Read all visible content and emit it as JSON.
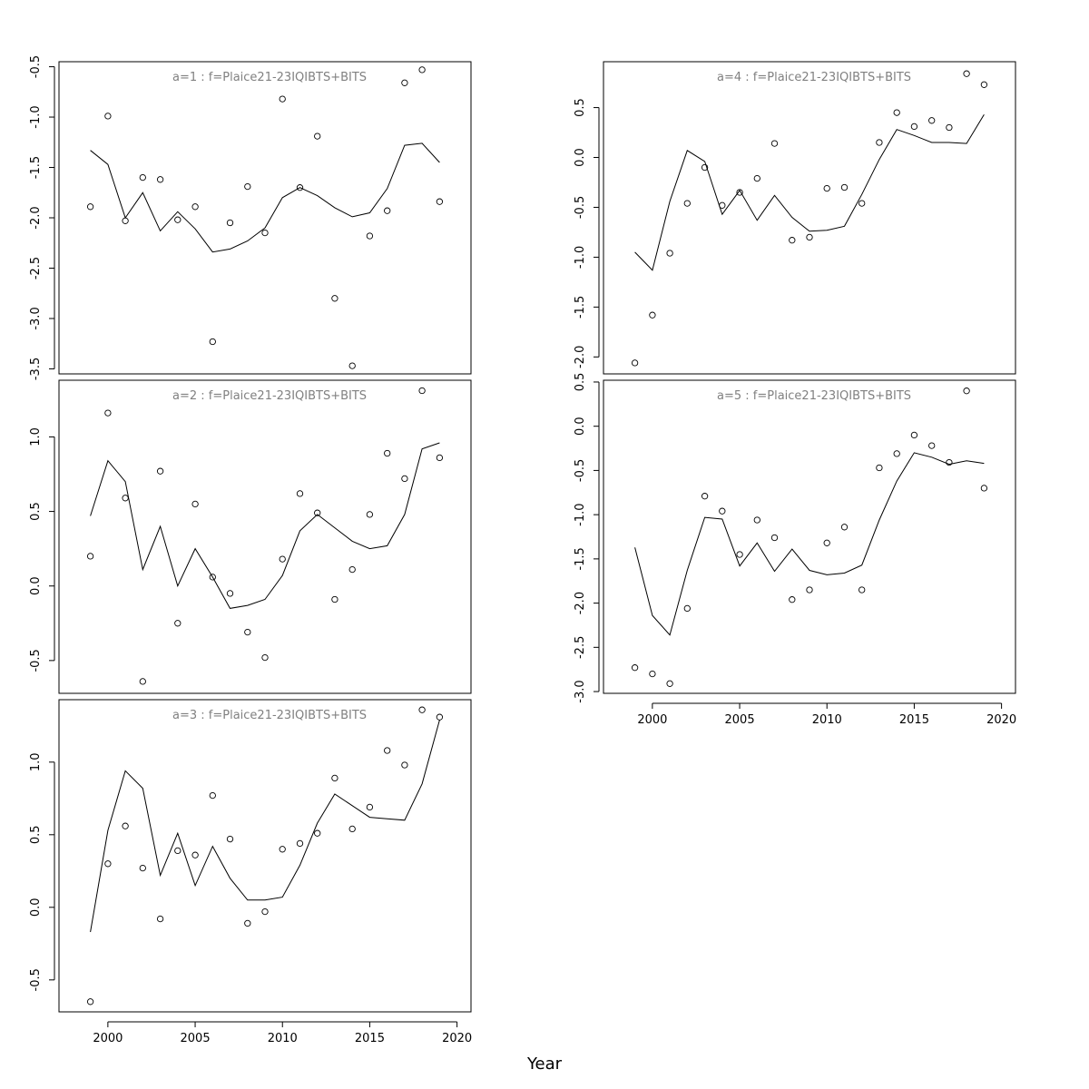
{
  "xlabel": "Year",
  "colors": {
    "line": "#000000",
    "points": "#000000",
    "title": "#808080",
    "frame": "#000000"
  },
  "chart_data": [
    {
      "type": "line",
      "title": "a=1 : f=Plaice21-23IQIBTS+BITS",
      "x": [
        1999,
        2000,
        2001,
        2002,
        2003,
        2004,
        2005,
        2006,
        2007,
        2008,
        2009,
        2010,
        2011,
        2012,
        2013,
        2014,
        2015,
        2016,
        2017,
        2018,
        2019
      ],
      "series": [
        {
          "kind": "line",
          "values": [
            -1.33,
            -1.47,
            -2.0,
            -1.75,
            -2.13,
            -1.94,
            -2.11,
            -2.34,
            -2.31,
            -2.23,
            -2.1,
            -1.8,
            -1.7,
            -1.78,
            -1.9,
            -1.99,
            -1.95,
            -1.71,
            -1.28,
            -1.26,
            -1.45
          ]
        },
        {
          "kind": "points",
          "values": [
            -1.89,
            -0.99,
            -2.03,
            -1.6,
            -1.62,
            -2.02,
            -1.89,
            -3.23,
            -2.05,
            -1.69,
            -2.15,
            -0.82,
            -1.7,
            -1.19,
            -2.8,
            -3.47,
            -2.18,
            -1.93,
            -0.66,
            -0.53,
            -1.84
          ]
        }
      ],
      "yticks": [
        -0.5,
        -1.0,
        -1.5,
        -2.0,
        -2.5,
        -3.0,
        -3.5
      ],
      "ylim": [
        -3.55,
        -0.45
      ],
      "xlim": [
        1997.2,
        2020.8
      ],
      "xticks": [],
      "grid": false
    },
    {
      "type": "line",
      "title": "a=2 : f=Plaice21-23IQIBTS+BITS",
      "x": [
        1999,
        2000,
        2001,
        2002,
        2003,
        2004,
        2005,
        2006,
        2007,
        2008,
        2009,
        2010,
        2011,
        2012,
        2013,
        2014,
        2015,
        2016,
        2017,
        2018,
        2019
      ],
      "series": [
        {
          "kind": "line",
          "values": [
            0.47,
            0.84,
            0.7,
            0.11,
            0.4,
            0.0,
            0.25,
            0.06,
            -0.15,
            -0.13,
            -0.09,
            0.07,
            0.37,
            0.48,
            0.39,
            0.3,
            0.25,
            0.27,
            0.48,
            0.92,
            0.96
          ]
        },
        {
          "kind": "points",
          "values": [
            0.2,
            1.16,
            0.59,
            -0.64,
            0.77,
            -0.25,
            0.55,
            0.06,
            -0.05,
            -0.31,
            -0.48,
            0.18,
            0.62,
            0.49,
            -0.09,
            0.11,
            0.48,
            0.89,
            0.72,
            1.31,
            0.86
          ]
        }
      ],
      "yticks": [
        1.0,
        0.5,
        0.0,
        -0.5
      ],
      "ylim": [
        -0.72,
        1.38
      ],
      "xlim": [
        1997.2,
        2020.8
      ],
      "xticks": [],
      "grid": false
    },
    {
      "type": "line",
      "title": "a=3 : f=Plaice21-23IQIBTS+BITS",
      "x": [
        1999,
        2000,
        2001,
        2002,
        2003,
        2004,
        2005,
        2006,
        2007,
        2008,
        2009,
        2010,
        2011,
        2012,
        2013,
        2014,
        2015,
        2016,
        2017,
        2018,
        2019
      ],
      "series": [
        {
          "kind": "line",
          "values": [
            -0.17,
            0.53,
            0.94,
            0.82,
            0.22,
            0.51,
            0.15,
            0.42,
            0.2,
            0.05,
            0.05,
            0.07,
            0.29,
            0.58,
            0.78,
            0.7,
            0.62,
            0.61,
            0.6,
            0.85,
            1.29
          ]
        },
        {
          "kind": "points",
          "values": [
            -0.65,
            0.3,
            0.56,
            0.27,
            -0.08,
            0.39,
            0.36,
            0.77,
            0.47,
            -0.11,
            -0.03,
            0.4,
            0.44,
            0.51,
            0.89,
            0.54,
            0.69,
            1.08,
            0.98,
            1.36,
            1.31
          ]
        }
      ],
      "yticks": [
        1.0,
        0.5,
        0.0,
        -0.5
      ],
      "ylim": [
        -0.72,
        1.43
      ],
      "xlim": [
        1997.2,
        2020.8
      ],
      "xticks": [
        2000,
        2005,
        2010,
        2015,
        2020
      ],
      "grid": false
    },
    {
      "type": "line",
      "title": "a=4 : f=Plaice21-23IQIBTS+BITS",
      "x": [
        1999,
        2000,
        2001,
        2002,
        2003,
        2004,
        2005,
        2006,
        2007,
        2008,
        2009,
        2010,
        2011,
        2012,
        2013,
        2014,
        2015,
        2016,
        2017,
        2018,
        2019
      ],
      "series": [
        {
          "kind": "line",
          "values": [
            -0.95,
            -1.13,
            -0.44,
            0.07,
            -0.04,
            -0.57,
            -0.33,
            -0.63,
            -0.38,
            -0.6,
            -0.74,
            -0.73,
            -0.69,
            -0.37,
            -0.02,
            0.28,
            0.22,
            0.15,
            0.15,
            0.14,
            0.43
          ]
        },
        {
          "kind": "points",
          "values": [
            -2.06,
            -1.58,
            -0.96,
            -0.46,
            -0.1,
            -0.48,
            -0.35,
            -0.21,
            0.14,
            -0.83,
            -0.8,
            -0.31,
            -0.3,
            -0.46,
            0.15,
            0.45,
            0.31,
            0.37,
            0.3,
            0.84,
            0.73
          ]
        }
      ],
      "yticks": [
        0.5,
        0.0,
        -0.5,
        -1.0,
        -1.5,
        -2.0
      ],
      "ylim": [
        -2.17,
        0.96
      ],
      "xlim": [
        1997.2,
        2020.8
      ],
      "xticks": [],
      "grid": false
    },
    {
      "type": "line",
      "title": "a=5 : f=Plaice21-23IQIBTS+BITS",
      "x": [
        1999,
        2000,
        2001,
        2002,
        2003,
        2004,
        2005,
        2006,
        2007,
        2008,
        2009,
        2010,
        2011,
        2012,
        2013,
        2014,
        2015,
        2016,
        2017,
        2018,
        2019
      ],
      "series": [
        {
          "kind": "line",
          "values": [
            -1.37,
            -2.14,
            -2.36,
            -1.63,
            -1.03,
            -1.05,
            -1.58,
            -1.32,
            -1.64,
            -1.39,
            -1.63,
            -1.68,
            -1.66,
            -1.57,
            -1.06,
            -0.62,
            -0.3,
            -0.35,
            -0.43,
            -0.39,
            -0.42
          ]
        },
        {
          "kind": "points",
          "values": [
            -2.73,
            -2.8,
            -2.91,
            -2.06,
            -0.79,
            -0.96,
            -1.45,
            -1.06,
            -1.26,
            -1.96,
            -1.85,
            -1.32,
            -1.14,
            -1.85,
            -0.47,
            -0.31,
            -0.1,
            -0.22,
            -0.41,
            0.4,
            -0.7
          ]
        }
      ],
      "yticks": [
        0.5,
        0.0,
        -0.5,
        -1.0,
        -1.5,
        -2.0,
        -2.5,
        -3.0
      ],
      "ylim": [
        -3.02,
        0.52
      ],
      "xlim": [
        1997.2,
        2020.8
      ],
      "xticks": [
        2000,
        2005,
        2010,
        2015,
        2020
      ],
      "grid": false
    }
  ]
}
